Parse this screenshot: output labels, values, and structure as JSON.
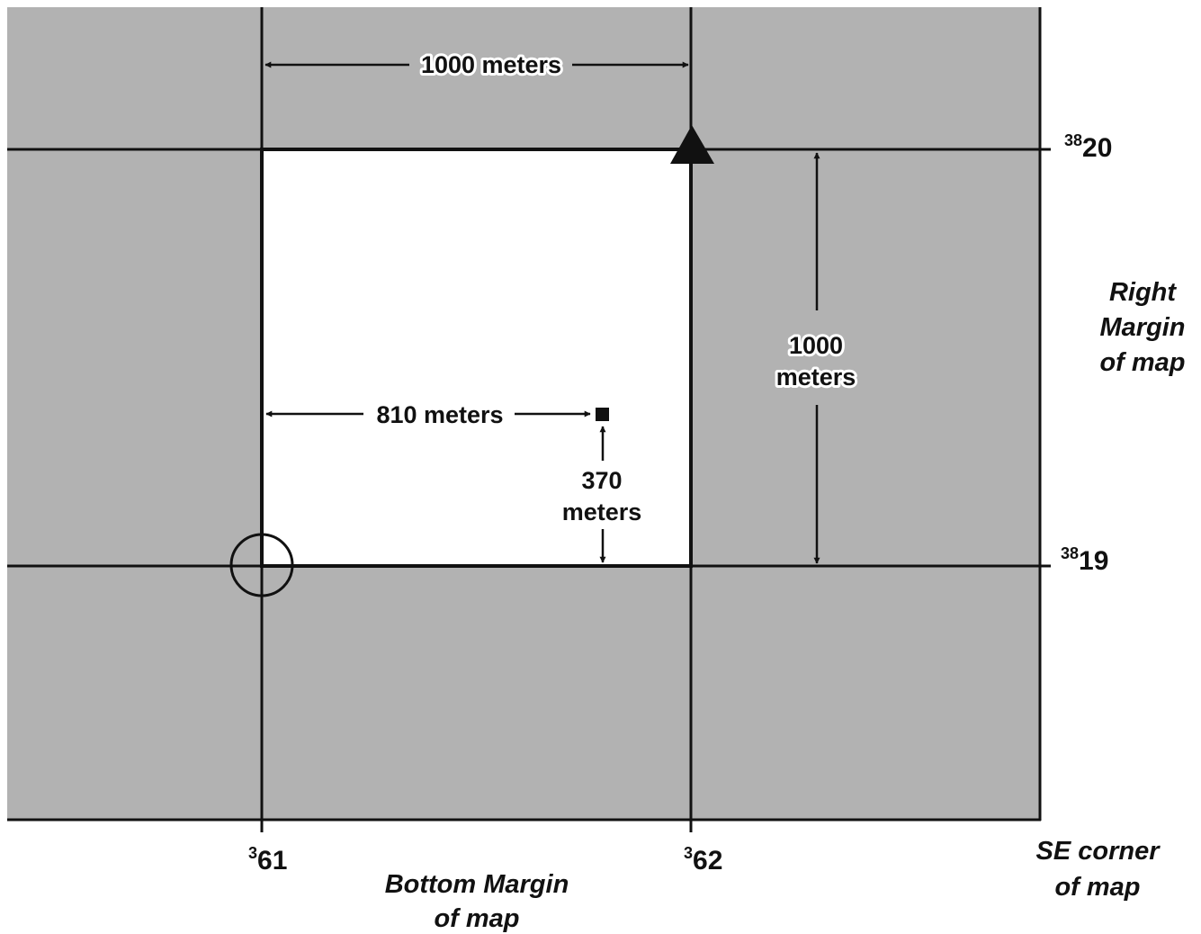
{
  "colors": {
    "map_area": "#b2b2b2",
    "grid_square": "#ffffff",
    "lines": "#111111"
  },
  "dimensions": {
    "top_width": "1000 meters",
    "right_height_line1": "1000",
    "right_height_line2": "meters",
    "easting_offset": "810 meters",
    "northing_offset_line1": "370",
    "northing_offset_line2": "meters"
  },
  "grid_labels": {
    "north_upper": {
      "prefix": "38",
      "value": "20"
    },
    "north_lower": {
      "prefix": "38",
      "value": "19"
    },
    "east_left": {
      "prefix": "3",
      "value": "61"
    },
    "east_right": {
      "prefix": "3",
      "value": "62"
    }
  },
  "margins": {
    "right_line1": "Right",
    "right_line2": "Margin",
    "right_line3": "of map",
    "bottom_line1": "Bottom Margin",
    "bottom_line2": "of map",
    "corner_line1": "SE corner",
    "corner_line2": "of map"
  },
  "symbols": {
    "origin": "circle-icon",
    "peak": "triangle-icon",
    "target": "square-icon"
  }
}
